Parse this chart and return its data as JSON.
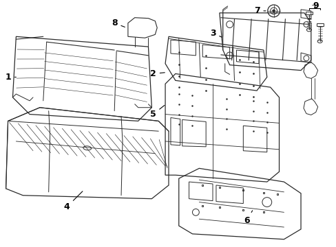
{
  "background_color": "#ffffff",
  "line_color": "#2a2a2a",
  "label_color": "#000000",
  "figsize": [
    4.89,
    3.6
  ],
  "dpi": 100,
  "font_size": 9
}
